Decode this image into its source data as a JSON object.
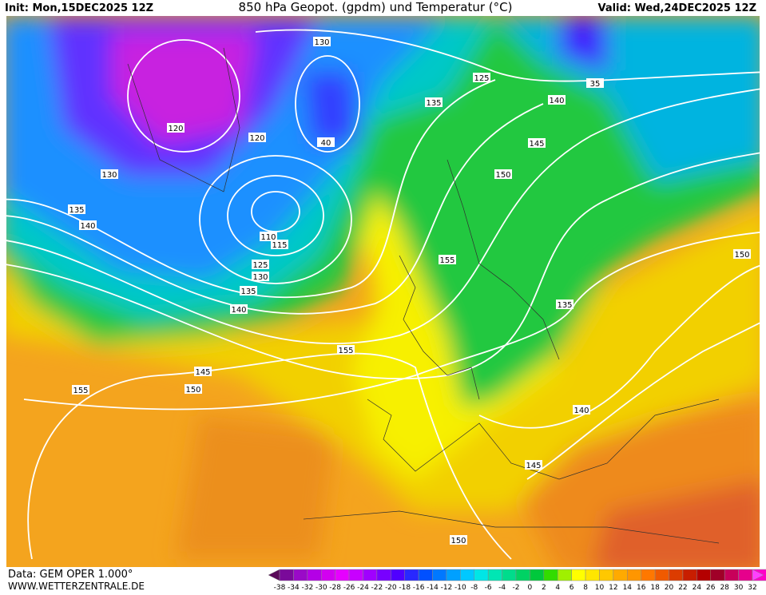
{
  "header": {
    "init": "Init: Mon,15DEC2025 12Z",
    "title": "850 hPa Geopot. (gpdm) und Temperatur (°C)",
    "valid": "Valid: Wed,24DEC2025 12Z"
  },
  "footer": {
    "source": "Data: GEM OPER 1.000°",
    "site": "WWW.WETTERZENTRALE.DE"
  },
  "colorbar": {
    "labels": [
      -38,
      -34,
      -32,
      -30,
      -28,
      -26,
      -24,
      -22,
      -20,
      -18,
      -16,
      -14,
      -12,
      -10,
      -8,
      -6,
      -4,
      -2,
      0,
      2,
      4,
      6,
      8,
      10,
      12,
      14,
      16,
      18,
      20,
      22,
      24,
      26,
      28,
      30,
      32
    ],
    "colors": [
      "#5a0a5a",
      "#7a0a9a",
      "#9a0ac8",
      "#b400e6",
      "#d200f0",
      "#e600ff",
      "#c800ff",
      "#a000ff",
      "#7800ff",
      "#5000ff",
      "#2828ff",
      "#0050ff",
      "#0078ff",
      "#00a0ff",
      "#00c8ff",
      "#00e6e6",
      "#00e6b4",
      "#00dc8c",
      "#00d264",
      "#00c83c",
      "#32dc00",
      "#a0f000",
      "#ffff00",
      "#ffe600",
      "#ffc800",
      "#ffaa00",
      "#ff9600",
      "#ff7800",
      "#f05a00",
      "#dc3c00",
      "#c81e00",
      "#b40000",
      "#a00028",
      "#c8005a",
      "#e6008c",
      "#ff00c8"
    ]
  },
  "contour_labels": [
    130,
    125,
    135,
    140,
    35,
    120,
    120,
    40,
    145,
    150,
    130,
    135,
    140,
    110,
    115,
    125,
    130,
    135,
    140,
    155,
    135,
    155,
    145,
    150,
    155,
    140,
    145,
    150,
    150
  ]
}
